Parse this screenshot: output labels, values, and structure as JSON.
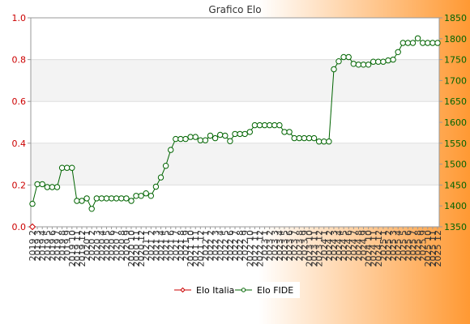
{
  "chart_data": {
    "type": "line",
    "title": "Grafico Elo",
    "left_axis": {
      "ylim": [
        0.0,
        1.0
      ],
      "ticks": [
        "0.0",
        "0.2",
        "0.4",
        "0.6",
        "0.8",
        "1.0"
      ]
    },
    "right_axis": {
      "ylim": [
        1350,
        1850
      ],
      "ticks": [
        "1350",
        "1400",
        "1450",
        "1500",
        "1550",
        "1600",
        "1650",
        "1700",
        "1750",
        "1800",
        "1850"
      ]
    },
    "x_ticks": [
      "2019 2",
      "2019 3",
      "2019 4",
      "2019 5",
      "2019 6",
      "2019 7",
      "2019 8",
      "2019 9",
      "2019 10",
      "2019 11",
      "2019 12",
      "2020 1",
      "2020 2",
      "2020 3",
      "2020 4",
      "2020 5",
      "2020 6",
      "2020 7",
      "2020 8",
      "2020 9",
      "2020 10",
      "2020 11",
      "2020 12",
      "2021 1",
      "2021 2",
      "2021 3",
      "2021 4",
      "2021 5",
      "2021 6",
      "2021 7",
      "2021 8",
      "2021 9",
      "2021 10",
      "2021 11",
      "2021 12",
      "2022 1",
      "2022 2",
      "2022 3",
      "2022 4",
      "2022 5",
      "2022 6",
      "2022 7",
      "2022 8",
      "2022 9",
      "2022 10",
      "2022 11",
      "2022 12",
      "2023 1",
      "2023 2",
      "2023 3",
      "2023 4",
      "2023 5",
      "2023 6",
      "2023 7",
      "2023 8",
      "2023 9",
      "2023 10",
      "2023 11",
      "2023 12",
      "2024 1",
      "2024 2",
      "2024 3",
      "2024 4",
      "2024 5",
      "2024 6",
      "2024 7",
      "2024 8",
      "2024 9",
      "2024 10",
      "2024 11",
      "2024 12",
      "2025 1",
      "2025 2",
      "2025 3",
      "2025 4",
      "2025 5",
      "2025 6",
      "2025 7",
      "2025 8",
      "2025 9",
      "2025 10",
      "2025 11",
      "2025 12"
    ],
    "series": [
      {
        "name": "Elo Italia",
        "axis": "left",
        "color": "#cc0000",
        "values": [
          0.0
        ]
      },
      {
        "name": "Elo FIDE",
        "axis": "right",
        "color": "#006400",
        "values": [
          1405,
          1452,
          1452,
          1445,
          1445,
          1445,
          1491,
          1491,
          1491,
          1412,
          1412,
          1418,
          1393,
          1418,
          1418,
          1418,
          1418,
          1418,
          1418,
          1418,
          1412,
          1424,
          1424,
          1430,
          1424,
          1446,
          1468,
          1496,
          1534,
          1560,
          1560,
          1560,
          1565,
          1565,
          1557,
          1557,
          1568,
          1562,
          1570,
          1568,
          1555,
          1572,
          1572,
          1572,
          1577,
          1593,
          1593,
          1593,
          1593,
          1593,
          1593,
          1577,
          1577,
          1562,
          1562,
          1562,
          1562,
          1562,
          1554,
          1554,
          1554,
          1727,
          1746,
          1756,
          1756,
          1740,
          1738,
          1738,
          1738,
          1745,
          1745,
          1745,
          1748,
          1750,
          1768,
          1790,
          1790,
          1790,
          1801,
          1790,
          1790,
          1790,
          1790
        ]
      }
    ],
    "legend": {
      "placement": "bottom-center"
    },
    "grid": true,
    "colors": {
      "plot_band_white": "#ffffff",
      "plot_band_gray": "#f3f3f3",
      "left_tick_color": "#cc0000",
      "right_tick_color": "#006400",
      "background_light": "#ffffff",
      "background_accent": "#ff9933"
    }
  }
}
